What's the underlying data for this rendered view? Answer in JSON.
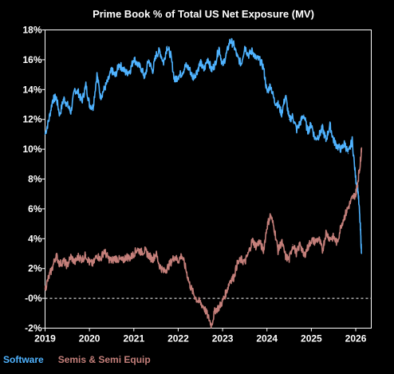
{
  "chart_data": {
    "type": "line",
    "title": "Prime Book % of Total US Net Exposure (MV)",
    "xlabel": "",
    "ylabel": "",
    "xlim": [
      2019.0,
      2026.35
    ],
    "ylim": [
      -2,
      18
    ],
    "y_ticks": [
      -2,
      0,
      2,
      4,
      6,
      8,
      10,
      12,
      14,
      16,
      18
    ],
    "y_tick_labels": [
      "-2%",
      "-0%",
      "2%",
      "4%",
      "6%",
      "8%",
      "10%",
      "12%",
      "14%",
      "16%",
      "18%"
    ],
    "x_ticks": [
      2019,
      2020,
      2021,
      2022,
      2023,
      2024,
      2025,
      2026
    ],
    "x_tick_labels": [
      "2019",
      "2020",
      "2021",
      "2022",
      "2023",
      "2024",
      "2025",
      "2026"
    ],
    "zero_line": "dashed",
    "grid": false,
    "legend": "bottom-left",
    "series": [
      {
        "name": "Software",
        "color": "#4fb3ff",
        "x": [
          2019.0,
          2019.08,
          2019.17,
          2019.25,
          2019.33,
          2019.42,
          2019.5,
          2019.58,
          2019.67,
          2019.75,
          2019.83,
          2019.92,
          2020.0,
          2020.08,
          2020.17,
          2020.25,
          2020.33,
          2020.42,
          2020.5,
          2020.58,
          2020.67,
          2020.75,
          2020.83,
          2020.92,
          2021.0,
          2021.08,
          2021.17,
          2021.25,
          2021.33,
          2021.42,
          2021.5,
          2021.58,
          2021.67,
          2021.75,
          2021.83,
          2021.92,
          2022.0,
          2022.08,
          2022.17,
          2022.25,
          2022.33,
          2022.42,
          2022.5,
          2022.58,
          2022.67,
          2022.75,
          2022.83,
          2022.92,
          2023.0,
          2023.08,
          2023.17,
          2023.25,
          2023.33,
          2023.42,
          2023.5,
          2023.58,
          2023.67,
          2023.75,
          2023.83,
          2023.92,
          2024.0,
          2024.08,
          2024.17,
          2024.25,
          2024.33,
          2024.42,
          2024.5,
          2024.58,
          2024.67,
          2024.75,
          2024.83,
          2024.92,
          2025.0,
          2025.08,
          2025.17,
          2025.25,
          2025.33,
          2025.42,
          2025.5,
          2025.58,
          2025.67,
          2025.75,
          2025.83,
          2025.92,
          2026.0,
          2026.05,
          2026.1,
          2026.13
        ],
        "values": [
          11.0,
          11.9,
          13.3,
          13.5,
          12.3,
          13.4,
          13.0,
          12.5,
          14.0,
          13.8,
          13.2,
          14.3,
          13.0,
          12.8,
          15.0,
          13.5,
          14.0,
          14.6,
          15.3,
          14.9,
          15.7,
          15.4,
          15.1,
          15.3,
          16.1,
          15.7,
          15.4,
          14.8,
          16.0,
          15.2,
          16.3,
          16.6,
          15.8,
          16.9,
          16.3,
          14.6,
          14.9,
          15.1,
          15.6,
          15.4,
          14.8,
          15.2,
          15.8,
          15.3,
          16.1,
          15.3,
          15.7,
          16.8,
          15.6,
          16.3,
          17.3,
          17.0,
          16.2,
          15.7,
          16.9,
          16.3,
          16.6,
          16.1,
          16.0,
          15.5,
          13.8,
          14.3,
          13.2,
          13.0,
          12.4,
          13.6,
          12.0,
          12.2,
          11.3,
          11.8,
          12.3,
          11.2,
          11.7,
          10.7,
          10.9,
          11.4,
          10.6,
          11.6,
          10.6,
          10.2,
          10.0,
          10.4,
          9.7,
          10.6,
          8.0,
          7.3,
          5.0,
          3.0
        ]
      },
      {
        "name": "Semis & Semi Equip",
        "color": "#c47f7a",
        "x": [
          2019.0,
          2019.08,
          2019.17,
          2019.25,
          2019.33,
          2019.42,
          2019.5,
          2019.58,
          2019.67,
          2019.75,
          2019.83,
          2019.92,
          2020.0,
          2020.08,
          2020.17,
          2020.25,
          2020.33,
          2020.42,
          2020.5,
          2020.58,
          2020.67,
          2020.75,
          2020.83,
          2020.92,
          2021.0,
          2021.08,
          2021.17,
          2021.25,
          2021.33,
          2021.42,
          2021.5,
          2021.58,
          2021.67,
          2021.75,
          2021.83,
          2021.92,
          2022.0,
          2022.08,
          2022.17,
          2022.25,
          2022.33,
          2022.42,
          2022.5,
          2022.58,
          2022.67,
          2022.75,
          2022.83,
          2022.92,
          2023.0,
          2023.08,
          2023.17,
          2023.25,
          2023.33,
          2023.42,
          2023.5,
          2023.58,
          2023.67,
          2023.75,
          2023.83,
          2023.92,
          2024.0,
          2024.08,
          2024.17,
          2024.25,
          2024.33,
          2024.42,
          2024.5,
          2024.58,
          2024.67,
          2024.75,
          2024.83,
          2024.92,
          2025.0,
          2025.08,
          2025.17,
          2025.25,
          2025.33,
          2025.42,
          2025.5,
          2025.58,
          2025.67,
          2025.75,
          2025.83,
          2025.92,
          2026.0,
          2026.05,
          2026.1,
          2026.13
        ],
        "values": [
          0.6,
          1.4,
          2.1,
          2.9,
          2.3,
          2.5,
          2.2,
          2.8,
          2.4,
          2.8,
          2.6,
          2.9,
          2.4,
          2.3,
          2.9,
          2.6,
          3.2,
          2.7,
          2.5,
          2.7,
          2.6,
          2.5,
          2.8,
          2.7,
          3.0,
          3.3,
          3.1,
          3.2,
          2.9,
          2.6,
          3.0,
          2.2,
          1.8,
          2.0,
          2.4,
          2.8,
          2.5,
          2.9,
          2.0,
          1.0,
          0.4,
          -0.1,
          -0.3,
          -0.6,
          -1.2,
          -1.8,
          -0.8,
          -0.6,
          -0.2,
          0.4,
          1.2,
          1.4,
          2.3,
          2.6,
          2.4,
          3.0,
          3.9,
          3.5,
          3.8,
          3.2,
          4.8,
          5.6,
          4.6,
          3.2,
          3.8,
          2.8,
          2.6,
          3.6,
          3.0,
          3.7,
          2.8,
          3.4,
          3.9,
          3.8,
          4.0,
          3.2,
          4.4,
          4.0,
          4.1,
          3.7,
          4.9,
          5.5,
          6.1,
          6.7,
          7.0,
          7.9,
          9.0,
          10.1
        ]
      }
    ]
  }
}
